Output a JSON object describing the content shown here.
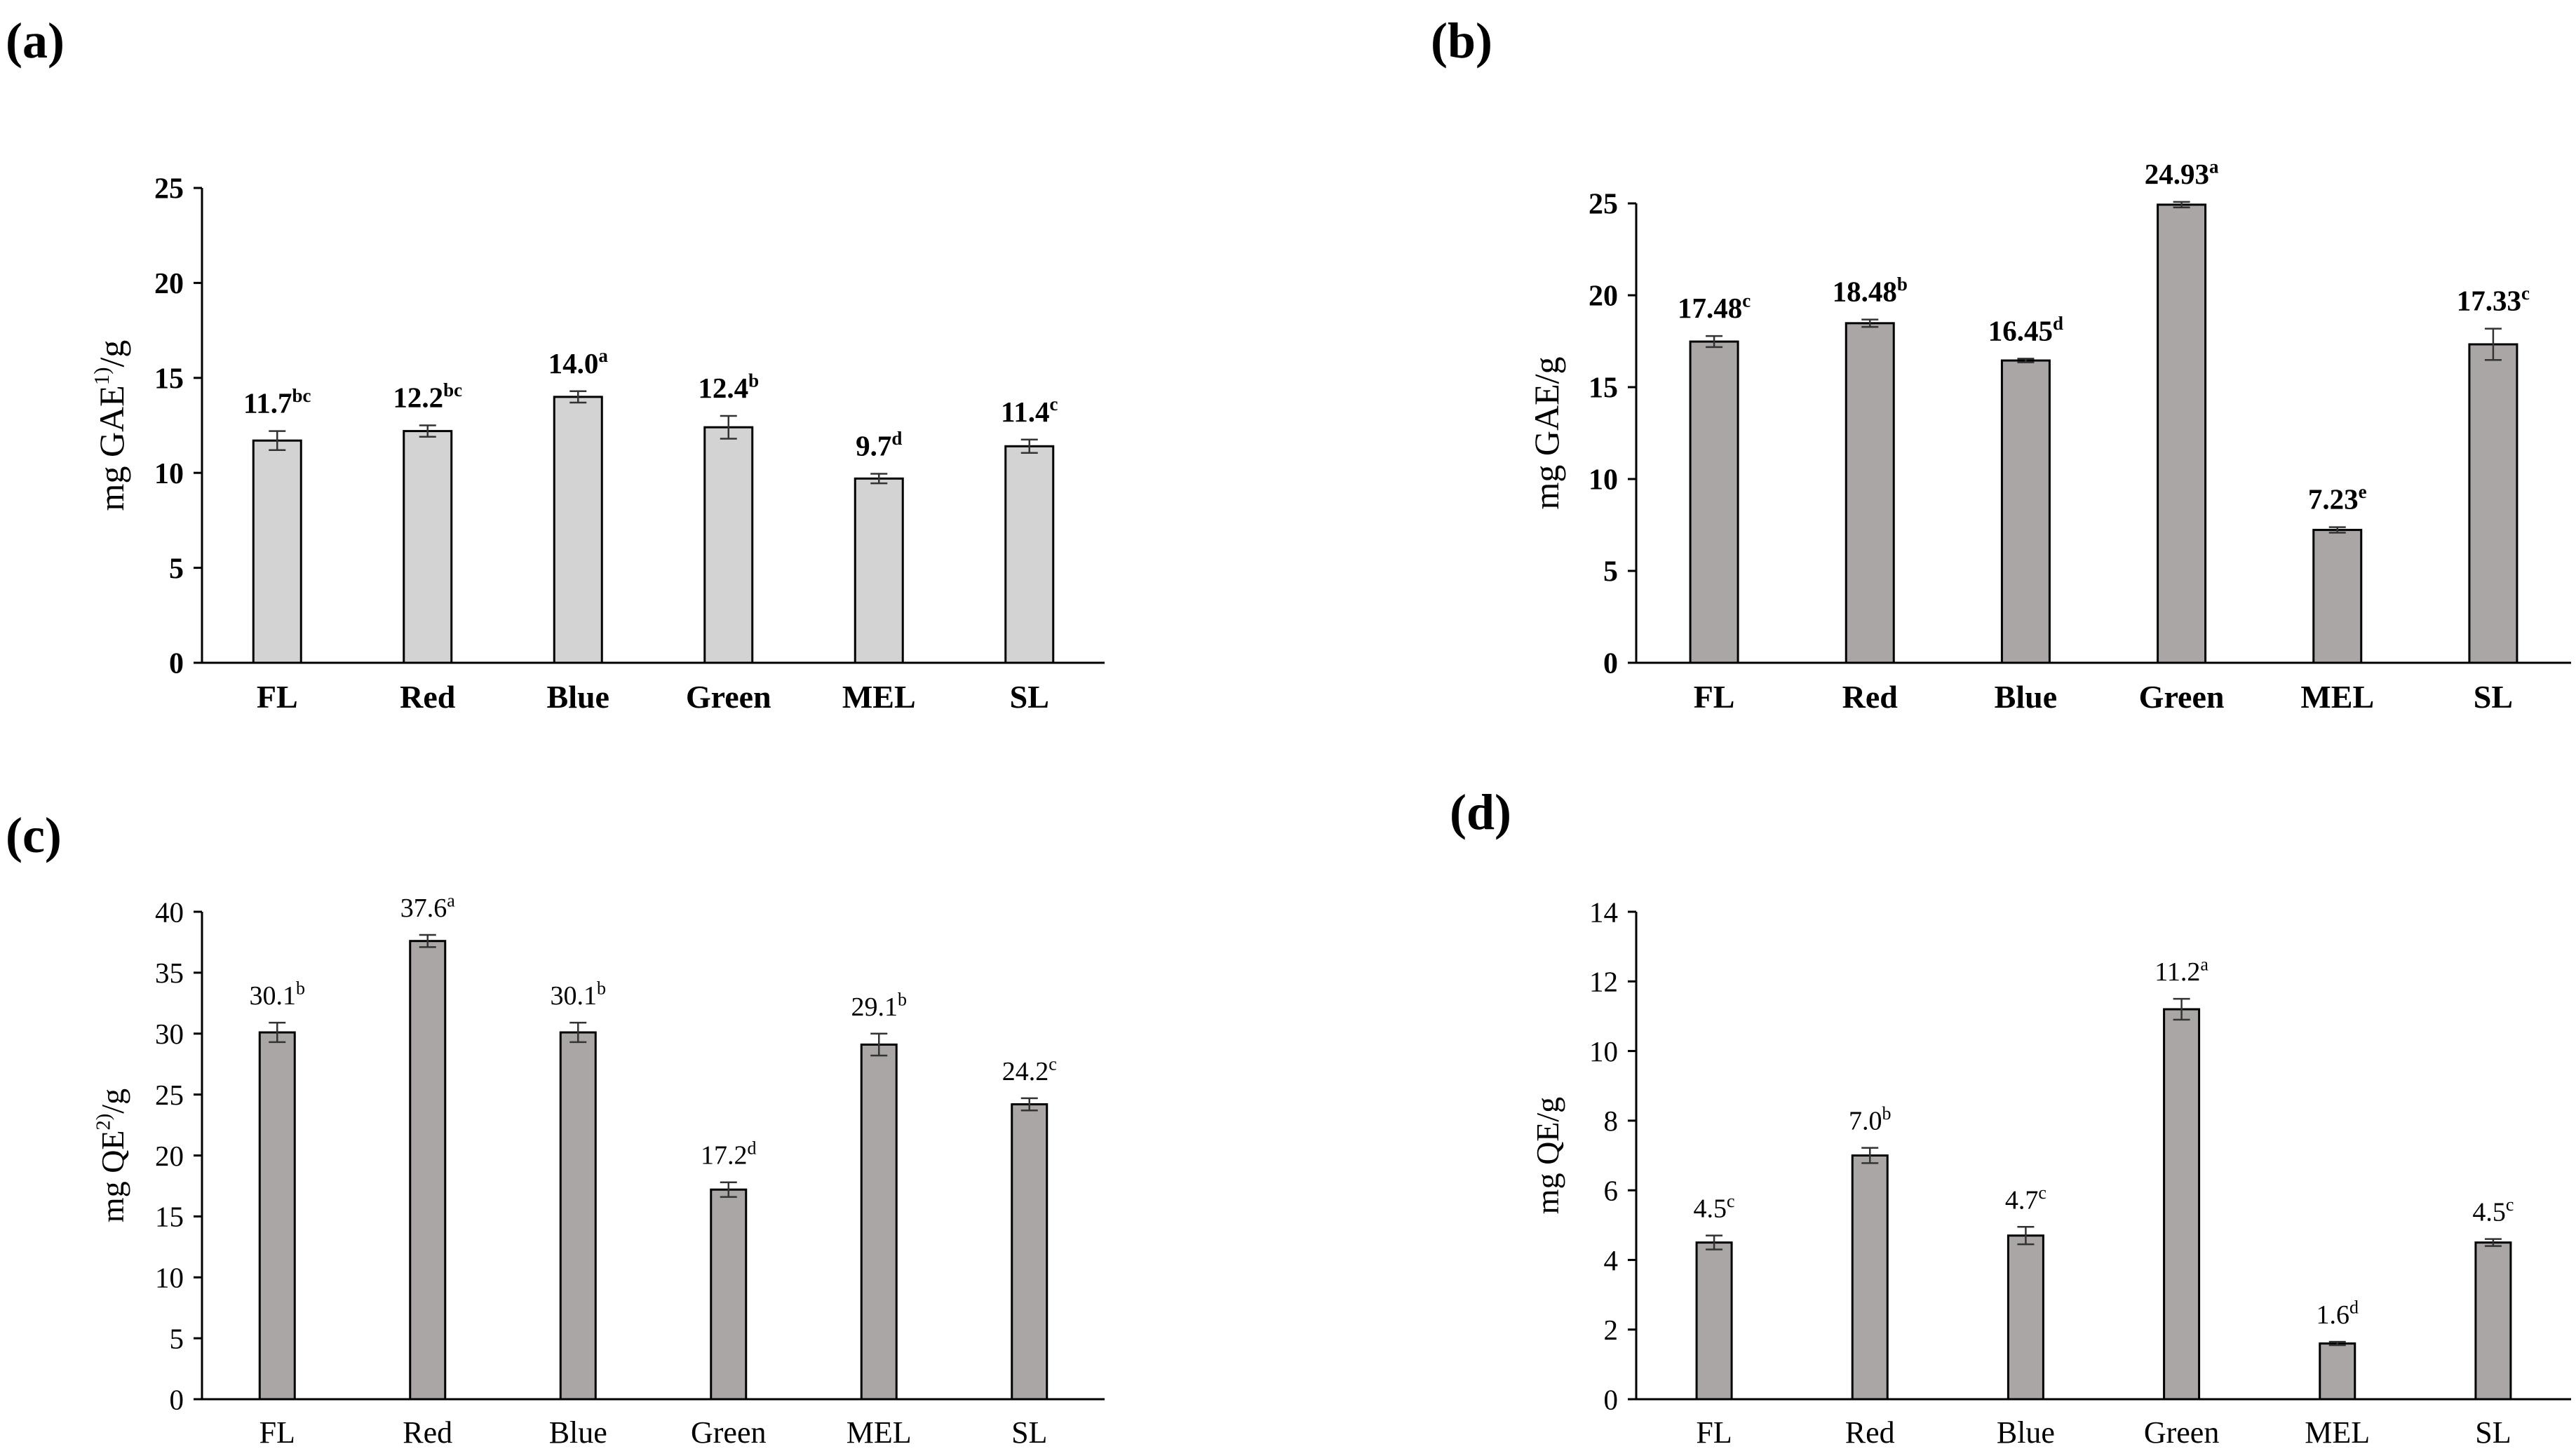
{
  "figure": {
    "panel_labels": [
      "(a)",
      "(b)",
      "(c)",
      "(d)"
    ]
  },
  "chart_data": [
    {
      "panel": "(a)",
      "type": "bar",
      "title": "",
      "xlabel": "",
      "ylabel": "mg GAE",
      "ylabel_sup": "1)",
      "ylabel_suffix": "/g",
      "categories": [
        "FL",
        "Red",
        "Blue",
        "Green",
        "MEL",
        "SL"
      ],
      "values": [
        11.7,
        12.2,
        14.0,
        12.4,
        9.7,
        11.4
      ],
      "errors": [
        0.5,
        0.3,
        0.3,
        0.6,
        0.25,
        0.35
      ],
      "value_labels": [
        "11.7",
        "12.2",
        "14.0",
        "12.4",
        "9.7",
        "11.4"
      ],
      "letters": [
        "bc",
        "bc",
        "a",
        "b",
        "d",
        "c"
      ],
      "ylim": [
        0,
        25
      ],
      "yticks": [
        0,
        5,
        10,
        15,
        20,
        25
      ],
      "grid": false,
      "bar_color": "#d3d3d3",
      "bold_labels": true
    },
    {
      "panel": "(b)",
      "type": "bar",
      "title": "",
      "xlabel": "",
      "ylabel": "mg GAE/g",
      "ylabel_sup": "",
      "ylabel_suffix": "",
      "categories": [
        "FL",
        "Red",
        "Blue",
        "Green",
        "MEL",
        "SL"
      ],
      "values": [
        17.48,
        18.48,
        16.45,
        24.93,
        7.23,
        17.33
      ],
      "errors": [
        0.3,
        0.2,
        0.1,
        0.15,
        0.15,
        0.85
      ],
      "value_labels": [
        "17.48",
        "18.48",
        "16.45",
        "24.93",
        "7.23",
        "17.33"
      ],
      "letters": [
        "c",
        "b",
        "d",
        "a",
        "e",
        "c"
      ],
      "ylim": [
        0,
        25
      ],
      "yticks": [
        0,
        5,
        10,
        15,
        20,
        25
      ],
      "grid": false,
      "bar_color": "#aaa6a6",
      "bold_labels": true
    },
    {
      "panel": "(c)",
      "type": "bar",
      "title": "",
      "xlabel": "",
      "ylabel": "mg QE",
      "ylabel_sup": "2)",
      "ylabel_suffix": "/g",
      "categories": [
        "FL",
        "Red",
        "Blue",
        "Green",
        "MEL",
        "SL"
      ],
      "values": [
        30.1,
        37.6,
        30.1,
        17.2,
        29.1,
        24.2
      ],
      "errors": [
        0.8,
        0.5,
        0.8,
        0.6,
        0.9,
        0.5
      ],
      "value_labels": [
        "30.1",
        "37.6",
        "30.1",
        "17.2",
        "29.1",
        "24.2"
      ],
      "letters": [
        "b",
        "a",
        "b",
        "d",
        "b",
        "c"
      ],
      "ylim": [
        0,
        40
      ],
      "yticks": [
        0,
        5,
        10,
        15,
        20,
        25,
        30,
        35,
        40
      ],
      "grid": false,
      "bar_color": "#aaa6a6",
      "bold_labels": false
    },
    {
      "panel": "(d)",
      "type": "bar",
      "title": "",
      "xlabel": "",
      "ylabel": "mg QE/g",
      "ylabel_sup": "",
      "ylabel_suffix": "",
      "categories": [
        "FL",
        "Red",
        "Blue",
        "Green",
        "MEL",
        "SL"
      ],
      "values": [
        4.5,
        7.0,
        4.7,
        11.2,
        1.6,
        4.5
      ],
      "errors": [
        0.2,
        0.22,
        0.25,
        0.3,
        0.05,
        0.1
      ],
      "value_labels": [
        "4.5",
        "7.0",
        "4.7",
        "11.2",
        "1.6",
        "4.5"
      ],
      "letters": [
        "c",
        "b",
        "c",
        "a",
        "d",
        "c"
      ],
      "ylim": [
        0,
        14
      ],
      "yticks": [
        0,
        2,
        4,
        6,
        8,
        10,
        12,
        14
      ],
      "grid": false,
      "bar_color": "#aaa6a6",
      "bold_labels": false
    }
  ]
}
